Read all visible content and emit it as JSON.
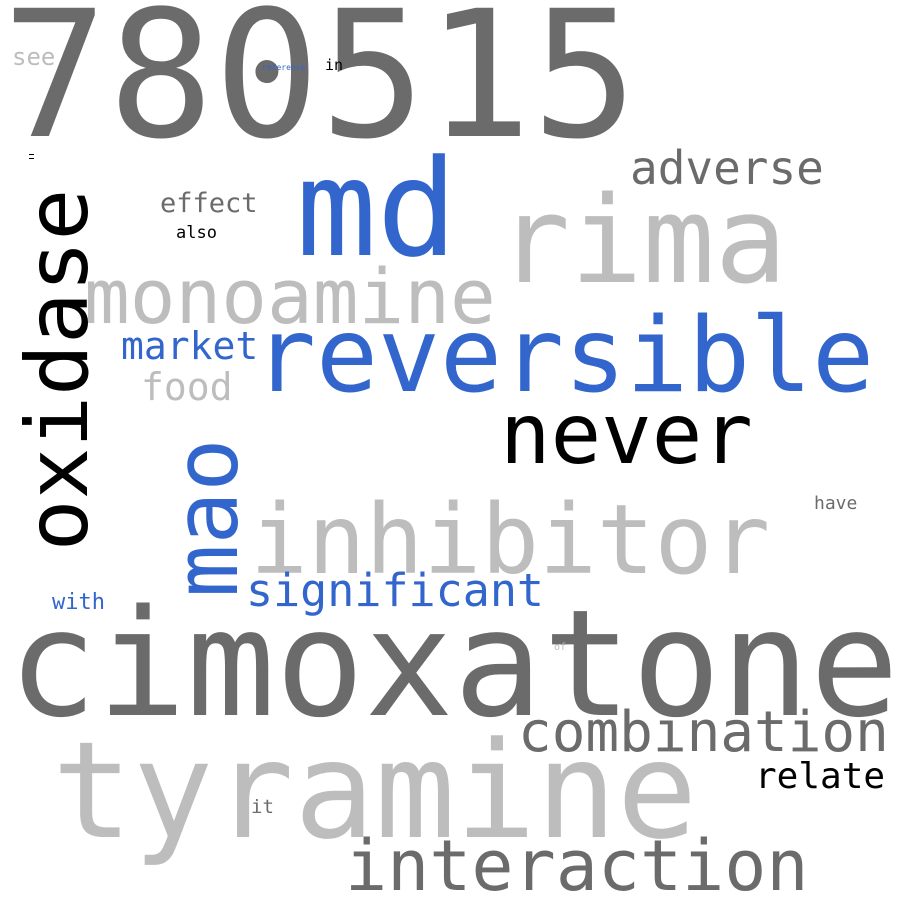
{
  "palette": {
    "dark_gray": "#6b6b6b",
    "light_gray": "#bdbdbd",
    "blue": "#3366cc",
    "black": "#000000"
  },
  "words": [
    {
      "text": "780515",
      "color": "#6b6b6b",
      "orientation": "horizontal"
    },
    {
      "text": "cimoxatone",
      "color": "#6b6b6b",
      "orientation": "horizontal"
    },
    {
      "text": "tyramine",
      "color": "#bdbdbd",
      "orientation": "horizontal"
    },
    {
      "text": "rima",
      "color": "#bdbdbd",
      "orientation": "horizontal"
    },
    {
      "text": "md",
      "color": "#3366cc",
      "orientation": "horizontal"
    },
    {
      "text": "reversible",
      "color": "#3366cc",
      "orientation": "horizontal"
    },
    {
      "text": "inhibitor",
      "color": "#bdbdbd",
      "orientation": "horizontal"
    },
    {
      "text": "monoamine",
      "color": "#bdbdbd",
      "orientation": "horizontal"
    },
    {
      "text": "oxidase",
      "color": "#000000",
      "orientation": "vertical"
    },
    {
      "text": "mao",
      "color": "#3366cc",
      "orientation": "vertical"
    },
    {
      "text": "never",
      "color": "#000000",
      "orientation": "horizontal"
    },
    {
      "text": "interaction",
      "color": "#6b6b6b",
      "orientation": "horizontal"
    },
    {
      "text": "combination",
      "color": "#6b6b6b",
      "orientation": "horizontal"
    },
    {
      "text": "adverse",
      "color": "#6b6b6b",
      "orientation": "horizontal"
    },
    {
      "text": "significant",
      "color": "#3366cc",
      "orientation": "horizontal"
    },
    {
      "text": "relate",
      "color": "#000000",
      "orientation": "horizontal"
    },
    {
      "text": "market",
      "color": "#3366cc",
      "orientation": "horizontal"
    },
    {
      "text": "food",
      "color": "#bdbdbd",
      "orientation": "horizontal"
    },
    {
      "text": "effect",
      "color": "#6b6b6b",
      "orientation": "horizontal"
    },
    {
      "text": "also",
      "color": "#000000",
      "orientation": "horizontal"
    },
    {
      "text": "see",
      "color": "#bdbdbd",
      "orientation": "horizontal"
    },
    {
      "text": "with",
      "color": "#3366cc",
      "orientation": "horizontal"
    },
    {
      "text": "have",
      "color": "#6b6b6b",
      "orientation": "horizontal"
    },
    {
      "text": "it",
      "color": "#6b6b6b",
      "orientation": "horizontal"
    },
    {
      "text": "in",
      "color": "#000000",
      "orientation": "horizontal"
    },
    {
      "text": "reference",
      "color": "#3366cc",
      "orientation": "horizontal"
    },
    {
      "text": "of",
      "color": "#bdbdbd",
      "orientation": "horizontal"
    }
  ]
}
